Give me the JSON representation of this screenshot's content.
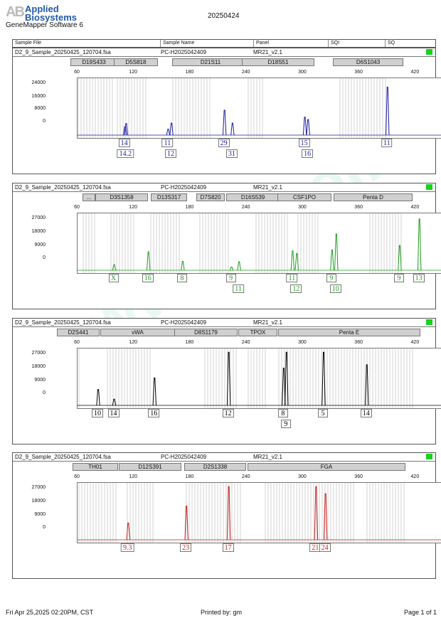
{
  "header": {
    "logo_text": "AB",
    "brand_line1": "Applied",
    "brand_line2": "Biosystems",
    "software": "GeneMapper Software 6",
    "run_id": "20250424"
  },
  "table_header": [
    "Sample File",
    "Sample Name",
    "Panel",
    "SQI",
    "SQ"
  ],
  "watermark": "www.procell.com.cn",
  "footer": {
    "datetime": "Fri Apr 25,2025 02:20PM, CST",
    "printed_by": "Printed by: gm",
    "page": "Page 1 of 1"
  },
  "colors": {
    "blue": "#1a1a9e",
    "green": "#1e9b1e",
    "black": "#000000",
    "red": "#c41b1b",
    "qc_green": "#1bd11b"
  },
  "chart_data": [
    {
      "type": "line",
      "dye": "blue",
      "color": "#1a1a9e",
      "sample_file": "D2_9_Sample_20250425_120704.fsa",
      "sample_name": "PC-H2025042409",
      "panel_name": "MR21_v2.1",
      "x_ticks": [
        "60",
        "120",
        "180",
        "240",
        "300",
        "360",
        "420"
      ],
      "y_ticks": [
        "24000",
        "16000",
        "8000",
        "0"
      ],
      "xlim": [
        60,
        450
      ],
      "ylim": [
        0,
        27000
      ],
      "markers": [
        "D19S433",
        "D5S818",
        "D21S11",
        "D18S51",
        "D6S1043"
      ],
      "peaks": [
        {
          "x": 110.5,
          "y": 4200
        },
        {
          "x": 111.8,
          "y": 5800
        },
        {
          "x": 156.5,
          "y": 3000
        },
        {
          "x": 160.0,
          "y": 6000
        },
        {
          "x": 216.5,
          "y": 12500
        },
        {
          "x": 225.0,
          "y": 6000
        },
        {
          "x": 302.0,
          "y": 9000
        },
        {
          "x": 305.5,
          "y": 7800
        },
        {
          "x": 390.0,
          "y": 24000
        }
      ],
      "allele_labels": [
        {
          "row": 1,
          "text": "14"
        },
        {
          "row": 2,
          "text": "14.2"
        },
        {
          "row": 1,
          "text": "11"
        },
        {
          "row": 2,
          "text": "12"
        },
        {
          "row": 1,
          "text": "29"
        },
        {
          "row": 2,
          "text": "31"
        },
        {
          "row": 1,
          "text": "15"
        },
        {
          "row": 2,
          "text": "16"
        },
        {
          "row": 1,
          "text": "11"
        }
      ]
    },
    {
      "type": "line",
      "dye": "green",
      "color": "#1e9b1e",
      "sample_file": "D2_9_Sample_20250425_120704.fsa",
      "sample_name": "PC-H2025042409",
      "panel_name": "MR21_v2.1",
      "x_ticks": [
        "60",
        "120",
        "180",
        "240",
        "300",
        "360",
        "420"
      ],
      "y_ticks": [
        "27000",
        "18000",
        "9000",
        "0"
      ],
      "xlim": [
        60,
        450
      ],
      "ylim": [
        0,
        30500
      ],
      "markers": [
        "...",
        "D3S1358",
        "D13S317",
        "D7S820",
        "D16S539",
        "CSF1PO",
        "Penta D"
      ],
      "peaks": [
        {
          "x": 99.0,
          "y": 3200
        },
        {
          "x": 135.5,
          "y": 10500
        },
        {
          "x": 172.0,
          "y": 5000
        },
        {
          "x": 224.0,
          "y": 1800
        },
        {
          "x": 232.0,
          "y": 4800
        },
        {
          "x": 289.0,
          "y": 11000
        },
        {
          "x": 293.5,
          "y": 9500
        },
        {
          "x": 331.0,
          "y": 11500
        },
        {
          "x": 335.5,
          "y": 20500
        },
        {
          "x": 403.0,
          "y": 14000
        },
        {
          "x": 424.0,
          "y": 29000
        }
      ],
      "allele_labels": [
        {
          "row": 1,
          "text": "X"
        },
        {
          "row": 1,
          "text": "16"
        },
        {
          "row": 1,
          "text": "8"
        },
        {
          "row": 1,
          "text": "9"
        },
        {
          "row": 2,
          "text": "11"
        },
        {
          "row": 1,
          "text": "11"
        },
        {
          "row": 2,
          "text": "12"
        },
        {
          "row": 1,
          "text": "9"
        },
        {
          "row": 2,
          "text": "10"
        },
        {
          "row": 1,
          "text": "9"
        },
        {
          "row": 1,
          "text": "13"
        }
      ]
    },
    {
      "type": "line",
      "dye": "black",
      "color": "#000000",
      "sample_file": "D2_9_Sample_20250425_120704.fsa",
      "sample_name": "PC-H2025042409",
      "panel_name": "MR21_v2.1",
      "x_ticks": [
        "60",
        "120",
        "180",
        "240",
        "300",
        "360",
        "420"
      ],
      "y_ticks": [
        "27000",
        "18000",
        "9000",
        "0"
      ],
      "xlim": [
        60,
        450
      ],
      "ylim": [
        0,
        30500
      ],
      "markers": [
        "D2S441",
        "vWA",
        "D8S1179",
        "TPOX",
        "Penta E"
      ],
      "peaks": [
        {
          "x": 82.0,
          "y": 9000
        },
        {
          "x": 99.0,
          "y": 3500
        },
        {
          "x": 142.0,
          "y": 15500
        },
        {
          "x": 221.0,
          "y": 30000
        },
        {
          "x": 279.5,
          "y": 21000
        },
        {
          "x": 282.5,
          "y": 30000
        },
        {
          "x": 322.0,
          "y": 30000
        },
        {
          "x": 368.0,
          "y": 23000
        }
      ],
      "allele_labels": [
        {
          "row": 1,
          "text": "10"
        },
        {
          "row": 1,
          "text": "14"
        },
        {
          "row": 1,
          "text": "16"
        },
        {
          "row": 1,
          "text": "12"
        },
        {
          "row": 1,
          "text": "8"
        },
        {
          "row": 2,
          "text": "9"
        },
        {
          "row": 1,
          "text": "5"
        },
        {
          "row": 1,
          "text": "14"
        }
      ]
    },
    {
      "type": "line",
      "dye": "red",
      "color": "#c41b1b",
      "sample_file": "D2_9_Sample_20250425_120704.fsa",
      "sample_name": "PC-H2025042409",
      "panel_name": "MR21_v2.1",
      "x_ticks": [
        "60",
        "120",
        "180",
        "240",
        "300",
        "360",
        "420"
      ],
      "y_ticks": [
        "27000",
        "18000",
        "9000",
        "0"
      ],
      "xlim": [
        60,
        450
      ],
      "ylim": [
        0,
        30500
      ],
      "markers": [
        "TH01",
        "D12S391",
        "D2S1338",
        "FGA"
      ],
      "peaks": [
        {
          "x": 114.0,
          "y": 9500
        },
        {
          "x": 176.0,
          "y": 19000
        },
        {
          "x": 221.0,
          "y": 30000
        },
        {
          "x": 314.0,
          "y": 30000
        },
        {
          "x": 324.0,
          "y": 26000
        }
      ],
      "allele_labels": [
        {
          "row": 1,
          "text": "9.3"
        },
        {
          "row": 1,
          "text": "23"
        },
        {
          "row": 1,
          "text": "17"
        },
        {
          "row": 1,
          "text": "21"
        },
        {
          "row": 1,
          "text": "24"
        }
      ]
    }
  ]
}
